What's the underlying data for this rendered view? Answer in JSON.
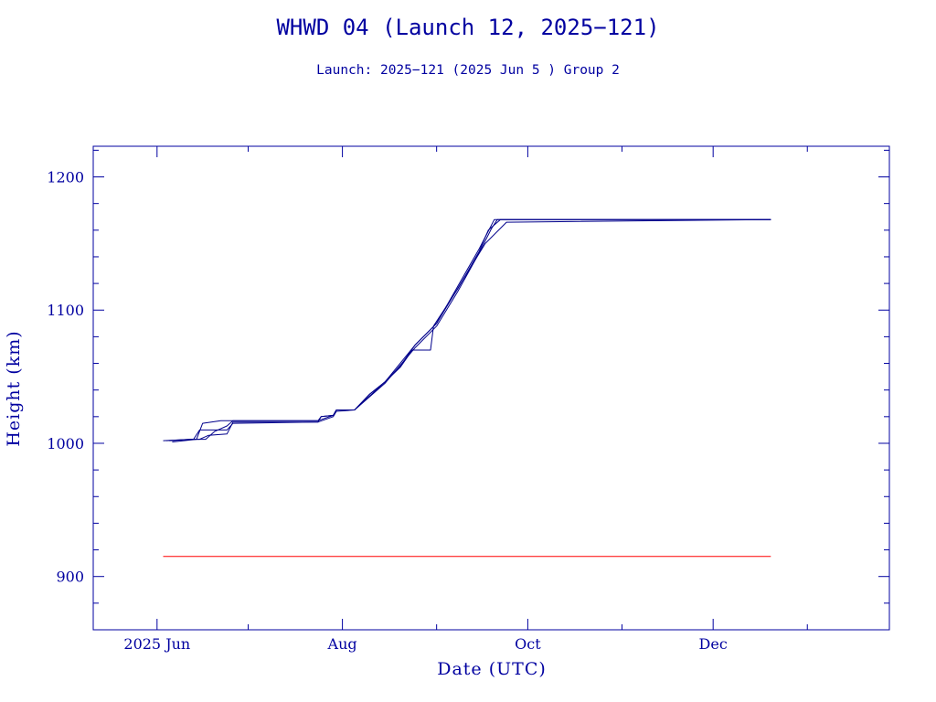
{
  "chart_data": {
    "type": "line",
    "title": "WHWD 04 (Launch 12, 2025−121)",
    "subtitle": "Launch: 2025−121  (2025 Jun  5 )  Group 2",
    "xlabel": "Date (UTC)",
    "ylabel": "Height (km)",
    "xlim": [
      "2025-05-11",
      "2026-01-28"
    ],
    "ylim": [
      860,
      1223
    ],
    "x_ticks": [
      {
        "label": "2025 Jun",
        "date": "2025-06-01"
      },
      {
        "label": "Aug",
        "date": "2025-08-01"
      },
      {
        "label": "Oct",
        "date": "2025-10-01"
      },
      {
        "label": "Dec",
        "date": "2025-12-01"
      }
    ],
    "y_ticks": [
      900,
      1000,
      1100,
      1200
    ],
    "grid": false,
    "colors": {
      "series": "#00008b",
      "reference": "#ff0000",
      "axes": "#0000a0",
      "text": "#0000a0"
    },
    "series": [
      {
        "x": [
          "2025-06-03",
          "2025-06-12",
          "2025-06-17",
          "2025-06-20",
          "2025-06-21",
          "2025-06-24",
          "2025-06-26",
          "2025-07-24",
          "2025-07-25",
          "2025-07-29",
          "2025-07-30",
          "2025-08-05",
          "2025-08-10",
          "2025-08-15",
          "2025-08-20",
          "2025-08-25",
          "2025-09-01",
          "2025-09-08",
          "2025-09-15",
          "2025-09-20",
          "2025-12-20"
        ],
        "y": [
          1002,
          1003,
          1003,
          1009,
          1010,
          1013,
          1017,
          1017,
          1020,
          1021,
          1025,
          1025,
          1037,
          1046,
          1058,
          1074,
          1090,
          1118,
          1146,
          1168,
          1168
        ]
      },
      {
        "x": [
          "2025-06-04",
          "2025-06-12",
          "2025-06-15",
          "2025-06-18",
          "2025-06-24",
          "2025-06-26",
          "2025-07-24",
          "2025-07-25",
          "2025-07-29",
          "2025-07-30",
          "2025-08-05",
          "2025-08-10",
          "2025-08-15",
          "2025-08-20",
          "2025-08-24",
          "2025-08-30",
          "2025-08-31",
          "2025-09-08",
          "2025-09-15",
          "2025-09-18",
          "2025-09-22",
          "2025-12-20"
        ],
        "y": [
          1002,
          1003,
          1003,
          1006,
          1007,
          1016,
          1016,
          1020,
          1021,
          1025,
          1025,
          1037,
          1046,
          1057,
          1070,
          1070,
          1088,
          1116,
          1144,
          1160,
          1168,
          1168
        ]
      },
      {
        "x": [
          "2025-06-05",
          "2025-06-13",
          "2025-06-15",
          "2025-06-24",
          "2025-06-26",
          "2025-07-24",
          "2025-07-29",
          "2025-07-30",
          "2025-08-05",
          "2025-08-15",
          "2025-08-25",
          "2025-09-01",
          "2025-09-10",
          "2025-09-17",
          "2025-09-24",
          "2025-12-20"
        ],
        "y": [
          1002,
          1003,
          1010,
          1010,
          1015,
          1016,
          1020,
          1024,
          1025,
          1046,
          1074,
          1090,
          1124,
          1150,
          1166,
          1168
        ]
      },
      {
        "x": [
          "2025-06-06",
          "2025-06-14",
          "2025-06-16",
          "2025-06-22",
          "2025-06-26",
          "2025-07-24",
          "2025-07-29",
          "2025-07-30",
          "2025-08-05",
          "2025-08-15",
          "2025-08-25",
          "2025-09-01",
          "2025-09-08",
          "2025-09-15",
          "2025-09-19",
          "2025-09-21",
          "2025-12-20"
        ],
        "y": [
          1001,
          1003,
          1015,
          1017,
          1017,
          1017,
          1021,
          1025,
          1025,
          1045,
          1072,
          1088,
          1114,
          1143,
          1161,
          1168,
          1168
        ]
      },
      {
        "x": [
          "2025-06-03",
          "2025-12-20"
        ],
        "y": [
          915,
          915
        ],
        "role": "reference"
      }
    ]
  }
}
